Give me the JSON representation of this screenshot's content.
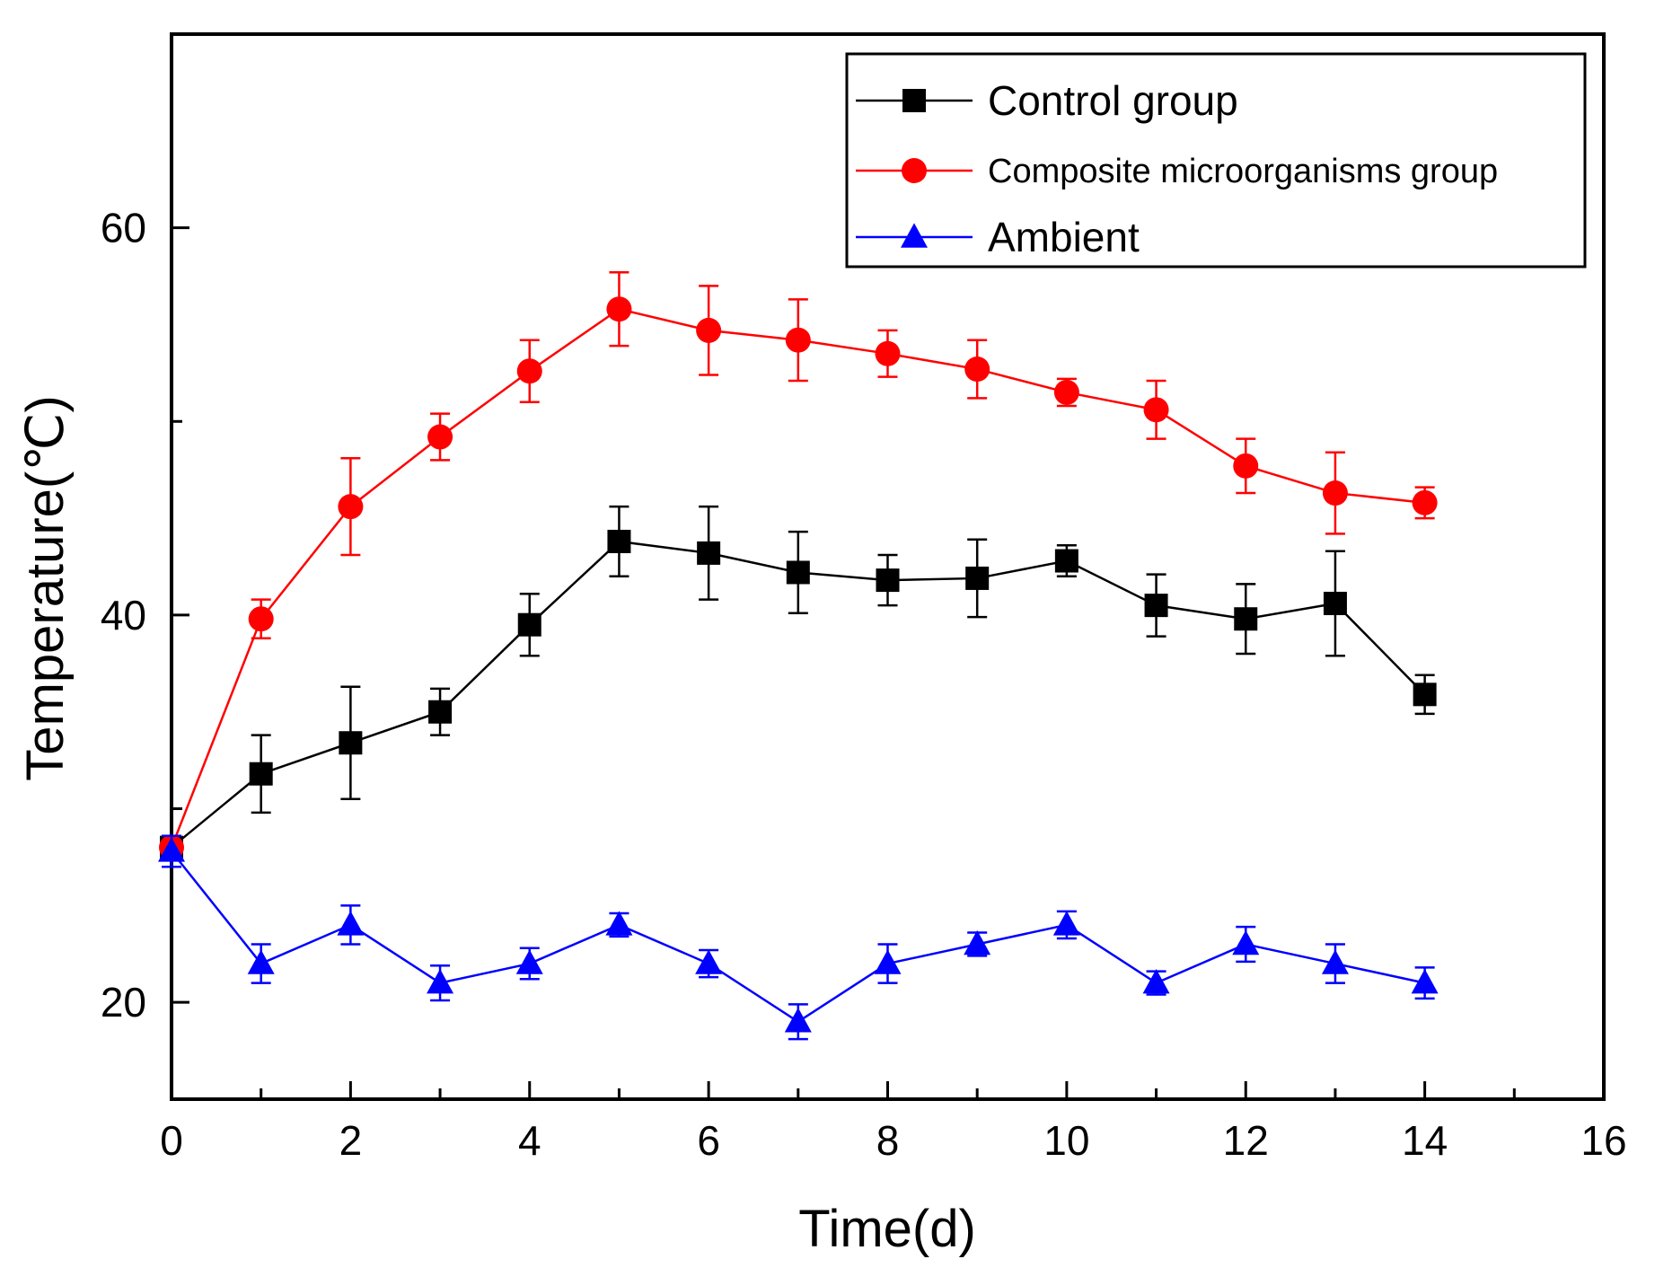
{
  "chart_data": {
    "type": "line",
    "xlabel": "Time(d)",
    "ylabel": "Temperature(℃)",
    "xlim": [
      0,
      16
    ],
    "ylim": [
      15,
      70
    ],
    "x_ticks": [
      0,
      2,
      4,
      6,
      8,
      10,
      12,
      14,
      16
    ],
    "x_tick_labels": [
      "0",
      "2",
      "4",
      "6",
      "8",
      "10",
      "12",
      "14",
      "16"
    ],
    "y_ticks": [
      20,
      40,
      60
    ],
    "y_tick_labels": [
      "20",
      "40",
      "60"
    ],
    "grid": false,
    "legend_position": "top-right",
    "x": [
      0,
      1,
      2,
      3,
      4,
      5,
      6,
      7,
      8,
      9,
      10,
      11,
      12,
      13,
      14
    ],
    "series": [
      {
        "name": "Control group",
        "color": "#000000",
        "marker": "square",
        "values": [
          28,
          31.8,
          33.4,
          35.0,
          39.5,
          43.8,
          43.2,
          42.2,
          41.8,
          41.9,
          42.8,
          40.5,
          39.8,
          40.6,
          35.9
        ],
        "errors": [
          0.6,
          2.0,
          2.9,
          1.2,
          1.6,
          1.8,
          2.4,
          2.1,
          1.3,
          2.0,
          0.8,
          1.6,
          1.8,
          2.7,
          1.0
        ]
      },
      {
        "name": "Composite microorganisms group",
        "color": "#ff0000",
        "marker": "circle",
        "values": [
          28,
          39.8,
          45.6,
          49.2,
          52.6,
          55.8,
          54.7,
          54.2,
          53.5,
          52.7,
          51.5,
          50.6,
          47.7,
          46.3,
          45.8
        ],
        "errors": [
          0.6,
          1.0,
          2.5,
          1.2,
          1.6,
          1.9,
          2.3,
          2.1,
          1.2,
          1.5,
          0.7,
          1.5,
          1.4,
          2.1,
          0.8
        ]
      },
      {
        "name": "Ambient",
        "color": "#0000ff",
        "marker": "triangle",
        "values": [
          27.8,
          22.0,
          24.0,
          21.0,
          22.0,
          24.0,
          22.0,
          19.0,
          22.0,
          23.0,
          24.0,
          21.0,
          23.0,
          22.0,
          21.0
        ],
        "errors": [
          0.8,
          1.0,
          1.0,
          0.9,
          0.8,
          0.6,
          0.7,
          0.9,
          1.0,
          0.6,
          0.7,
          0.6,
          0.9,
          1.0,
          0.8
        ]
      }
    ]
  }
}
